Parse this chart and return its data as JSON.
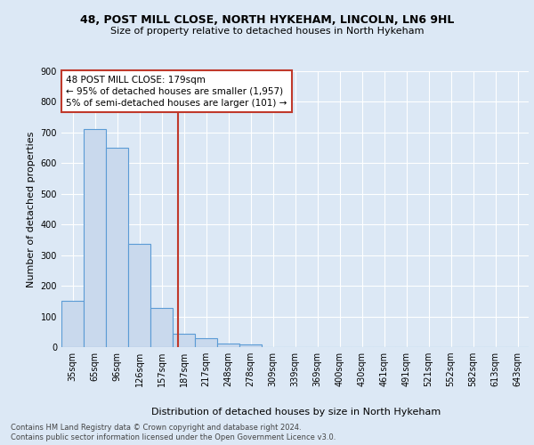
{
  "title1": "48, POST MILL CLOSE, NORTH HYKEHAM, LINCOLN, LN6 9HL",
  "title2": "Size of property relative to detached houses in North Hykeham",
  "xlabel": "Distribution of detached houses by size in North Hykeham",
  "ylabel": "Number of detached properties",
  "bar_labels": [
    "35sqm",
    "65sqm",
    "96sqm",
    "126sqm",
    "157sqm",
    "187sqm",
    "217sqm",
    "248sqm",
    "278sqm",
    "309sqm",
    "339sqm",
    "369sqm",
    "400sqm",
    "430sqm",
    "461sqm",
    "491sqm",
    "521sqm",
    "552sqm",
    "582sqm",
    "613sqm",
    "643sqm"
  ],
  "bar_values": [
    150,
    712,
    650,
    338,
    128,
    43,
    30,
    12,
    8,
    0,
    0,
    0,
    0,
    0,
    0,
    0,
    0,
    0,
    0,
    0,
    0
  ],
  "bar_color": "#c9d9ed",
  "bar_edgecolor": "#5b9bd5",
  "vline_color": "#c0392b",
  "annotation_text": "48 POST MILL CLOSE: 179sqm\n← 95% of detached houses are smaller (1,957)\n5% of semi-detached houses are larger (101) →",
  "annotation_box_color": "#ffffff",
  "annotation_box_edgecolor": "#c0392b",
  "ylim": [
    0,
    900
  ],
  "yticks": [
    0,
    100,
    200,
    300,
    400,
    500,
    600,
    700,
    800,
    900
  ],
  "footer": "Contains HM Land Registry data © Crown copyright and database right 2024.\nContains public sector information licensed under the Open Government Licence v3.0.",
  "bg_color": "#dce8f5",
  "plot_bg_color": "#dce8f5",
  "grid_color": "#ffffff",
  "title_fontsize": 9,
  "subtitle_fontsize": 8,
  "ylabel_fontsize": 8,
  "tick_fontsize": 7,
  "annotation_fontsize": 7.5,
  "footer_fontsize": 6
}
